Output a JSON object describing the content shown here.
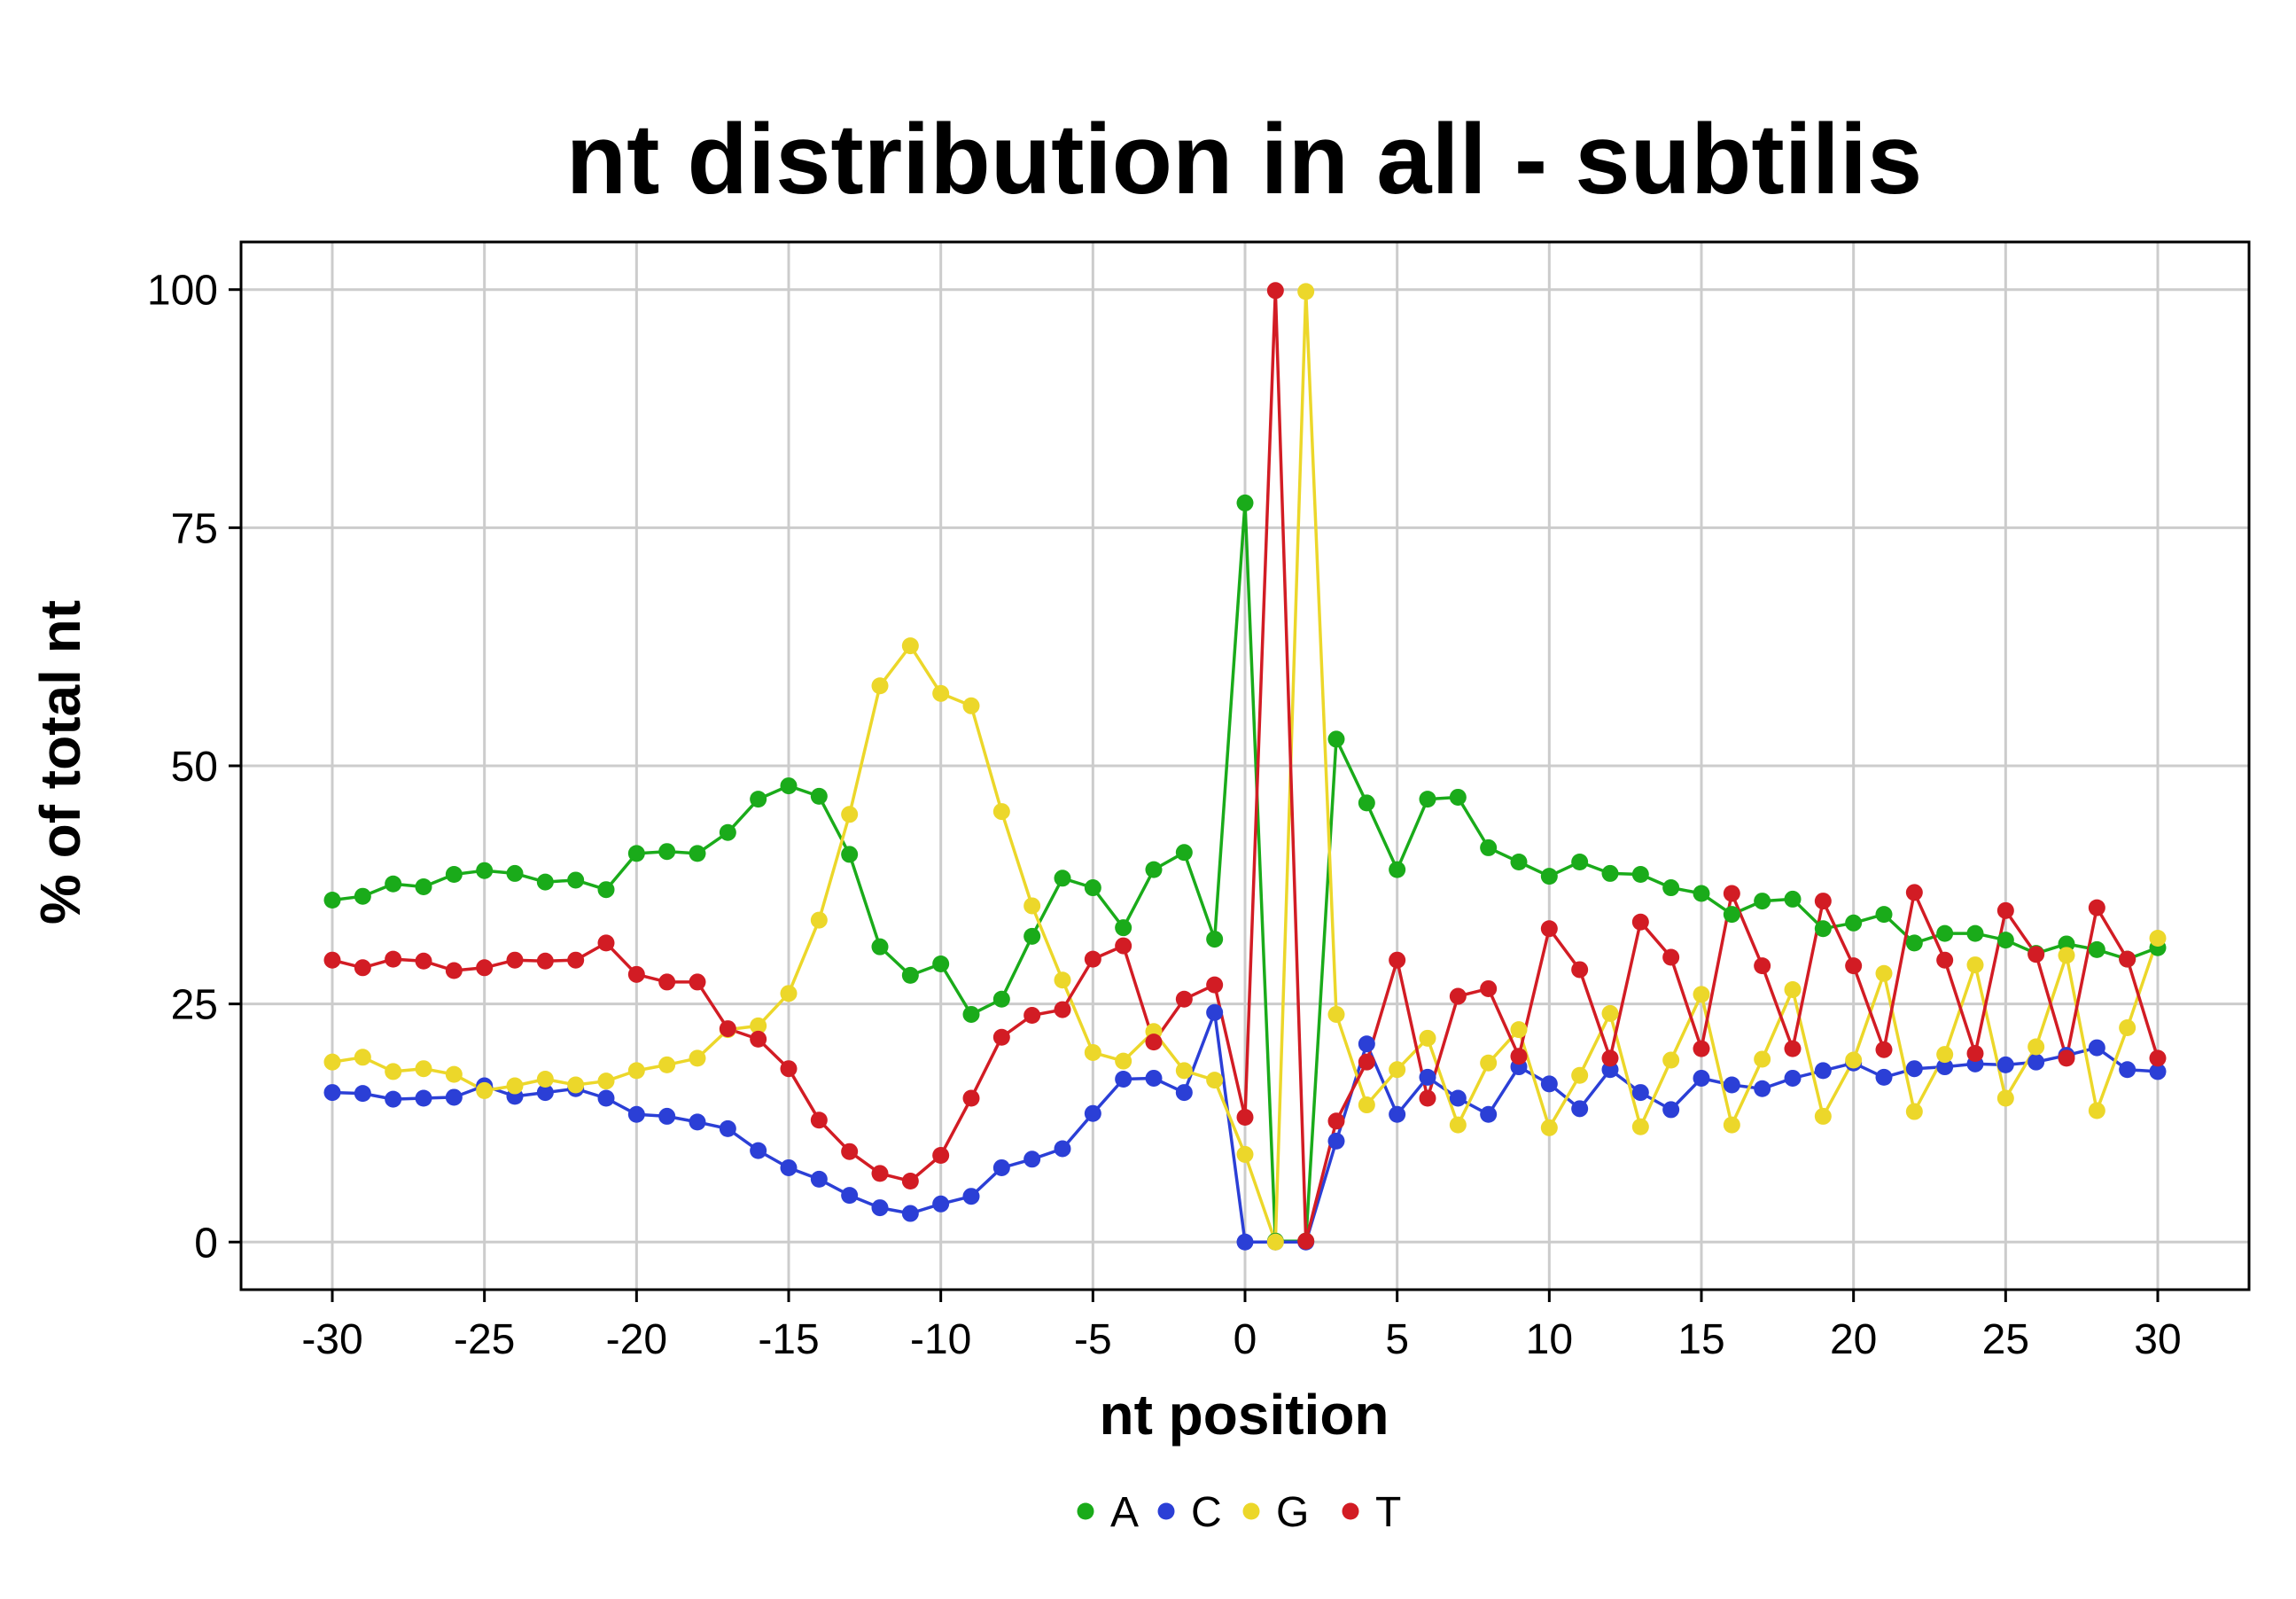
{
  "chart_data": {
    "type": "line",
    "title": "nt distribution in all - subtilis",
    "xlabel": "nt position",
    "ylabel": "% of total nt",
    "xlim": [
      -33,
      33
    ],
    "ylim": [
      -5,
      105
    ],
    "x_ticks": [
      -30,
      -25,
      -20,
      -15,
      -10,
      -5,
      0,
      5,
      10,
      15,
      20,
      25,
      30
    ],
    "y_ticks": [
      0,
      25,
      50,
      75,
      100
    ],
    "grid": true,
    "legend_position": "bottom",
    "x": [
      -30,
      -29,
      -28,
      -27,
      -26,
      -25,
      -24,
      -23,
      -22,
      -21,
      -20,
      -19,
      -18,
      -17,
      -16,
      -15,
      -14,
      -13,
      -12,
      -11,
      -10,
      -9,
      -8,
      -7,
      -6,
      -5,
      -4,
      -3,
      -2,
      -1,
      0,
      1,
      2,
      3,
      4,
      5,
      6,
      7,
      8,
      9,
      10,
      11,
      12,
      13,
      14,
      15,
      16,
      17,
      18,
      19,
      20,
      21,
      22,
      23,
      24,
      25,
      26,
      27,
      28,
      29,
      30
    ],
    "series": [
      {
        "name": "A",
        "color": "#1aab1a",
        "values": [
          35.9,
          36.3,
          37.6,
          37.3,
          38.6,
          39.0,
          38.7,
          37.8,
          38.0,
          37.0,
          40.8,
          41.0,
          40.8,
          43.0,
          46.5,
          47.9,
          46.8,
          40.7,
          31.0,
          28.0,
          29.2,
          23.9,
          25.5,
          32.1,
          38.2,
          37.2,
          33.0,
          39.1,
          40.9,
          31.8,
          77.6,
          0.1,
          0.1,
          52.8,
          46.1,
          39.1,
          46.5,
          46.7,
          41.4,
          39.9,
          38.4,
          39.9,
          38.7,
          38.6,
          37.2,
          36.6,
          34.4,
          35.8,
          36.0,
          32.9,
          33.5,
          34.4,
          31.4,
          32.4,
          32.4,
          31.7,
          30.3,
          31.3,
          30.7,
          29.7,
          30.9
        ]
      },
      {
        "name": "C",
        "color": "#2b3fd6",
        "values": [
          15.7,
          15.6,
          15.0,
          15.1,
          15.2,
          16.4,
          15.3,
          15.7,
          16.1,
          15.1,
          13.4,
          13.2,
          12.6,
          11.9,
          9.6,
          7.8,
          6.6,
          4.9,
          3.6,
          3.0,
          4.0,
          4.8,
          7.8,
          8.7,
          9.8,
          13.5,
          17.1,
          17.2,
          15.7,
          24.1,
          0.0,
          0.0,
          0.0,
          10.6,
          20.8,
          13.4,
          17.3,
          15.1,
          13.4,
          18.4,
          16.6,
          14.0,
          18.1,
          15.7,
          13.9,
          17.2,
          16.5,
          16.1,
          17.2,
          18.0,
          18.8,
          17.3,
          18.2,
          18.4,
          18.7,
          18.6,
          18.9,
          19.6,
          20.4,
          18.1,
          17.9
        ]
      },
      {
        "name": "G",
        "color": "#ecd72a",
        "values": [
          18.9,
          19.4,
          17.9,
          18.2,
          17.6,
          15.9,
          16.4,
          17.1,
          16.5,
          16.9,
          18.0,
          18.6,
          19.3,
          22.3,
          22.7,
          26.1,
          33.8,
          44.9,
          58.4,
          62.6,
          57.6,
          56.3,
          45.2,
          35.3,
          27.5,
          19.9,
          19.0,
          22.1,
          18.0,
          17.0,
          9.2,
          0.0,
          99.8,
          23.9,
          14.4,
          18.1,
          21.4,
          12.3,
          18.8,
          22.3,
          12.0,
          17.5,
          24.0,
          12.1,
          19.1,
          26.0,
          12.3,
          19.2,
          26.5,
          13.2,
          19.1,
          28.2,
          13.7,
          19.7,
          29.1,
          15.1,
          20.5,
          30.1,
          13.8,
          22.5,
          31.9
        ]
      },
      {
        "name": "T",
        "color": "#d21c24",
        "values": [
          29.6,
          28.8,
          29.7,
          29.5,
          28.5,
          28.8,
          29.6,
          29.5,
          29.6,
          31.4,
          28.1,
          27.3,
          27.3,
          22.4,
          21.3,
          18.2,
          12.8,
          9.5,
          7.2,
          6.4,
          9.1,
          15.1,
          21.5,
          23.8,
          24.4,
          29.7,
          31.1,
          21.0,
          25.5,
          27.0,
          13.1,
          99.9,
          0.1,
          12.7,
          18.9,
          29.6,
          15.1,
          25.8,
          26.6,
          19.5,
          32.9,
          28.6,
          19.3,
          33.6,
          29.9,
          20.3,
          36.6,
          29.0,
          20.3,
          35.8,
          29.0,
          20.2,
          36.7,
          29.6,
          19.8,
          34.8,
          30.2,
          19.3,
          35.1,
          29.7,
          19.3
        ]
      }
    ]
  }
}
